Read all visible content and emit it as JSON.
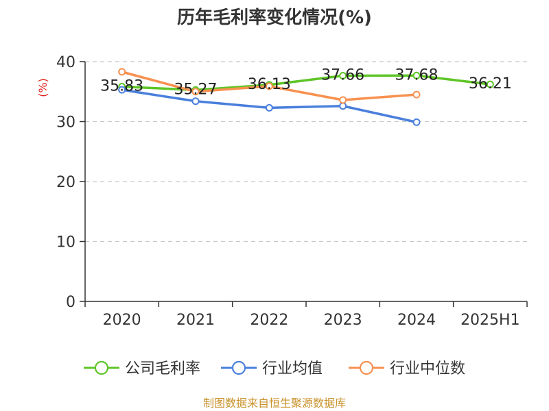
{
  "chart_data": {
    "type": "line",
    "title": "历年毛利率变化情况(%)",
    "ylabel": "(%)",
    "categories": [
      "2020",
      "2021",
      "2022",
      "2023",
      "2024",
      "2025H1"
    ],
    "ylim": [
      0,
      40
    ],
    "yticks": [
      0,
      10,
      20,
      30,
      40
    ],
    "grid": true,
    "legend_position": "bottom",
    "series": [
      {
        "name": "公司毛利率",
        "color": "#5ec526",
        "values": [
          35.83,
          35.27,
          36.13,
          37.66,
          37.68,
          36.21
        ],
        "show_labels": true
      },
      {
        "name": "行业均值",
        "color": "#4a7fdc",
        "values": [
          35.3,
          33.4,
          32.3,
          32.6,
          29.9,
          null
        ],
        "show_labels": false
      },
      {
        "name": "行业中位数",
        "color": "#f79150",
        "values": [
          38.3,
          35.0,
          35.9,
          33.6,
          34.5,
          null
        ],
        "show_labels": false
      }
    ]
  },
  "footer": {
    "source": "制图数据来自恒生聚源数据库"
  }
}
